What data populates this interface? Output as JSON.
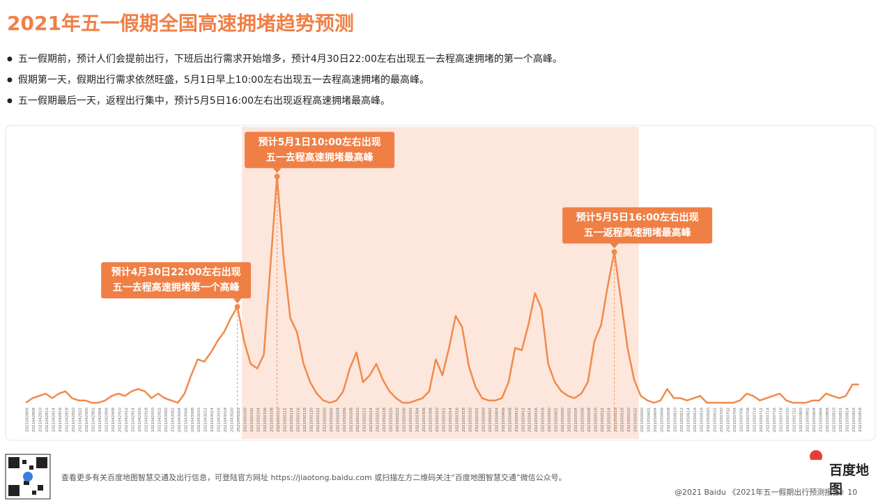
{
  "header": {
    "title": "2021年五一假期全国高速拥堵趋势预测",
    "bullets": [
      "五一假期前，预计人们会提前出行，下班后出行需求开始增多，预计4月30日22:00左右出现五一去程高速拥堵的第一个高峰。",
      "假期第一天，假期出行需求依然旺盛，5月1日早上10:00左右出现五一去程高速拥堵的最高峰。",
      "五一假期最后一天，返程出行集中，预计5月5日16:00左右出现返程高速拥堵最高峰。"
    ]
  },
  "chart_data": {
    "type": "line",
    "color": "#f08a4b",
    "ylim": [
      0,
      100
    ],
    "categories": [
      "2021042806",
      "2021042808",
      "2021042810",
      "2021042812",
      "2021042814",
      "2021042816",
      "2021042818",
      "2021042820",
      "2021042822",
      "2021042900",
      "2021042902",
      "2021042904",
      "2021042906",
      "2021042908",
      "2021042910",
      "2021042912",
      "2021042914",
      "2021042916",
      "2021042918",
      "2021042920",
      "2021042922",
      "2021043000",
      "2021043002",
      "2021043004",
      "2021043006",
      "2021043008",
      "2021043010",
      "2021043012",
      "2021043014",
      "2021043016",
      "2021043018",
      "2021043020",
      "2021043022",
      "2021050100",
      "2021050102",
      "2021050104",
      "2021050106",
      "2021050108",
      "2021050110",
      "2021050112",
      "2021050114",
      "2021050116",
      "2021050118",
      "2021050120",
      "2021050122",
      "2021050200",
      "2021050202",
      "2021050204",
      "2021050206",
      "2021050208",
      "2021050210",
      "2021050212",
      "2021050214",
      "2021050216",
      "2021050218",
      "2021050220",
      "2021050222",
      "2021050300",
      "2021050302",
      "2021050304",
      "2021050306",
      "2021050308",
      "2021050310",
      "2021050312",
      "2021050314",
      "2021050316",
      "2021050318",
      "2021050320",
      "2021050322",
      "2021050400",
      "2021050402",
      "2021050404",
      "2021050406",
      "2021050408",
      "2021050410",
      "2021050412",
      "2021050414",
      "2021050416",
      "2021050418",
      "2021050420",
      "2021050422",
      "2021050500",
      "2021050502",
      "2021050504",
      "2021050506",
      "2021050508",
      "2021050510",
      "2021050512",
      "2021050514",
      "2021050516",
      "2021050518",
      "2021050520",
      "2021050522",
      "2021050600",
      "2021050602",
      "2021050604",
      "2021050606",
      "2021050608",
      "2021050610",
      "2021050612",
      "2021050614",
      "2021050616",
      "2021050618",
      "2021050620",
      "2021050622",
      "2021050700",
      "2021050702",
      "2021050704",
      "2021050706",
      "2021050708",
      "2021050710",
      "2021050712",
      "2021050714",
      "2021050716",
      "2021050718",
      "2021050720",
      "2021050722",
      "2021050800",
      "2021050802",
      "2021050804",
      "2021050806",
      "2021050808",
      "2021050810",
      "2021050812",
      "2021050814",
      "2021050816",
      "2021050818"
    ],
    "values": [
      0,
      2,
      3,
      4,
      2,
      4,
      5,
      2,
      1,
      1,
      0,
      0,
      1,
      3,
      4,
      3,
      5,
      6,
      5,
      2,
      4,
      2,
      1,
      0,
      4,
      12,
      19,
      18,
      22,
      27,
      31,
      37,
      42,
      27,
      17,
      15,
      21,
      60,
      99,
      63,
      37,
      31,
      17,
      9,
      4,
      1,
      0,
      1,
      5,
      15,
      22,
      9,
      12,
      17,
      10,
      5,
      2,
      0,
      0,
      1,
      2,
      5,
      19,
      12,
      24,
      38,
      33,
      16,
      7,
      2,
      1,
      1,
      2,
      9,
      24,
      23,
      34,
      48,
      41,
      17,
      9,
      5,
      3,
      2,
      4,
      9,
      27,
      34,
      51,
      66,
      45,
      24,
      10,
      3,
      1,
      0,
      1,
      6,
      2,
      2,
      1,
      2,
      3,
      0,
      0,
      0,
      0,
      0,
      1,
      4,
      3,
      1,
      2,
      3,
      4,
      1,
      0,
      0,
      0,
      1,
      1,
      4,
      3,
      2,
      3,
      8,
      8
    ],
    "highlight": [
      "2021050100",
      "2021050600"
    ],
    "annotations": [
      {
        "x": "2021043022",
        "lines": [
          "预计4月30日22:00左右出现",
          "五一去程高速拥堵第一个高峰"
        ]
      },
      {
        "x": "2021050110",
        "lines": [
          "预计5月1日10:00左右出现",
          "五一去程高速拥堵最高峰"
        ]
      },
      {
        "x": "2021050516",
        "lines": [
          "预计5月5日16:00左右出现",
          "五一返程高速拥堵最高峰"
        ]
      }
    ]
  },
  "footer": {
    "note": "查看更多有关百度地图智慧交通及出行信息，可登陆官方网址 https://jiaotong.baidu.com 或扫描左方二维码关注“百度地图智慧交通”微信公众号。",
    "logo": "百度地图",
    "copyright": "@2021 Baidu 《2021年五一假期出行预测报告》10"
  }
}
